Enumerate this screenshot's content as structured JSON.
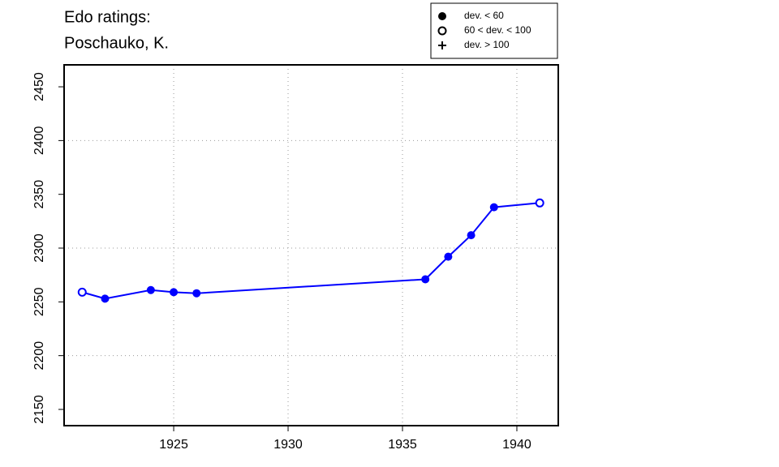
{
  "chart_data": {
    "type": "line",
    "title": [
      "Edo ratings:",
      "Poschauko, K."
    ],
    "x": [
      1921,
      1922,
      1924,
      1925,
      1926,
      1936,
      1937,
      1938,
      1939,
      1941
    ],
    "series": [
      {
        "color": "#0000ff",
        "values": [
          2259,
          2253,
          2261,
          2259,
          2258,
          2271,
          2292,
          2312,
          2338,
          2342
        ],
        "deviation_class": [
          1,
          0,
          0,
          0,
          0,
          0,
          0,
          0,
          0,
          1
        ]
      }
    ],
    "legend": [
      {
        "label": "dev. < 60",
        "symbol": "filled"
      },
      {
        "label": "60 < dev. < 100",
        "symbol": "open"
      },
      {
        "label": "dev. > 100",
        "symbol": "plus"
      }
    ],
    "xlim": [
      1920.21,
      1941.81
    ],
    "ylim": [
      2134.9,
      2470.4
    ],
    "xticks": [
      1925,
      1930,
      1935,
      1940
    ],
    "yticks": [
      2150,
      2200,
      2250,
      2300,
      2350,
      2400,
      2450
    ],
    "ygrid": [
      2200,
      2300,
      2400
    ],
    "grid": true
  }
}
